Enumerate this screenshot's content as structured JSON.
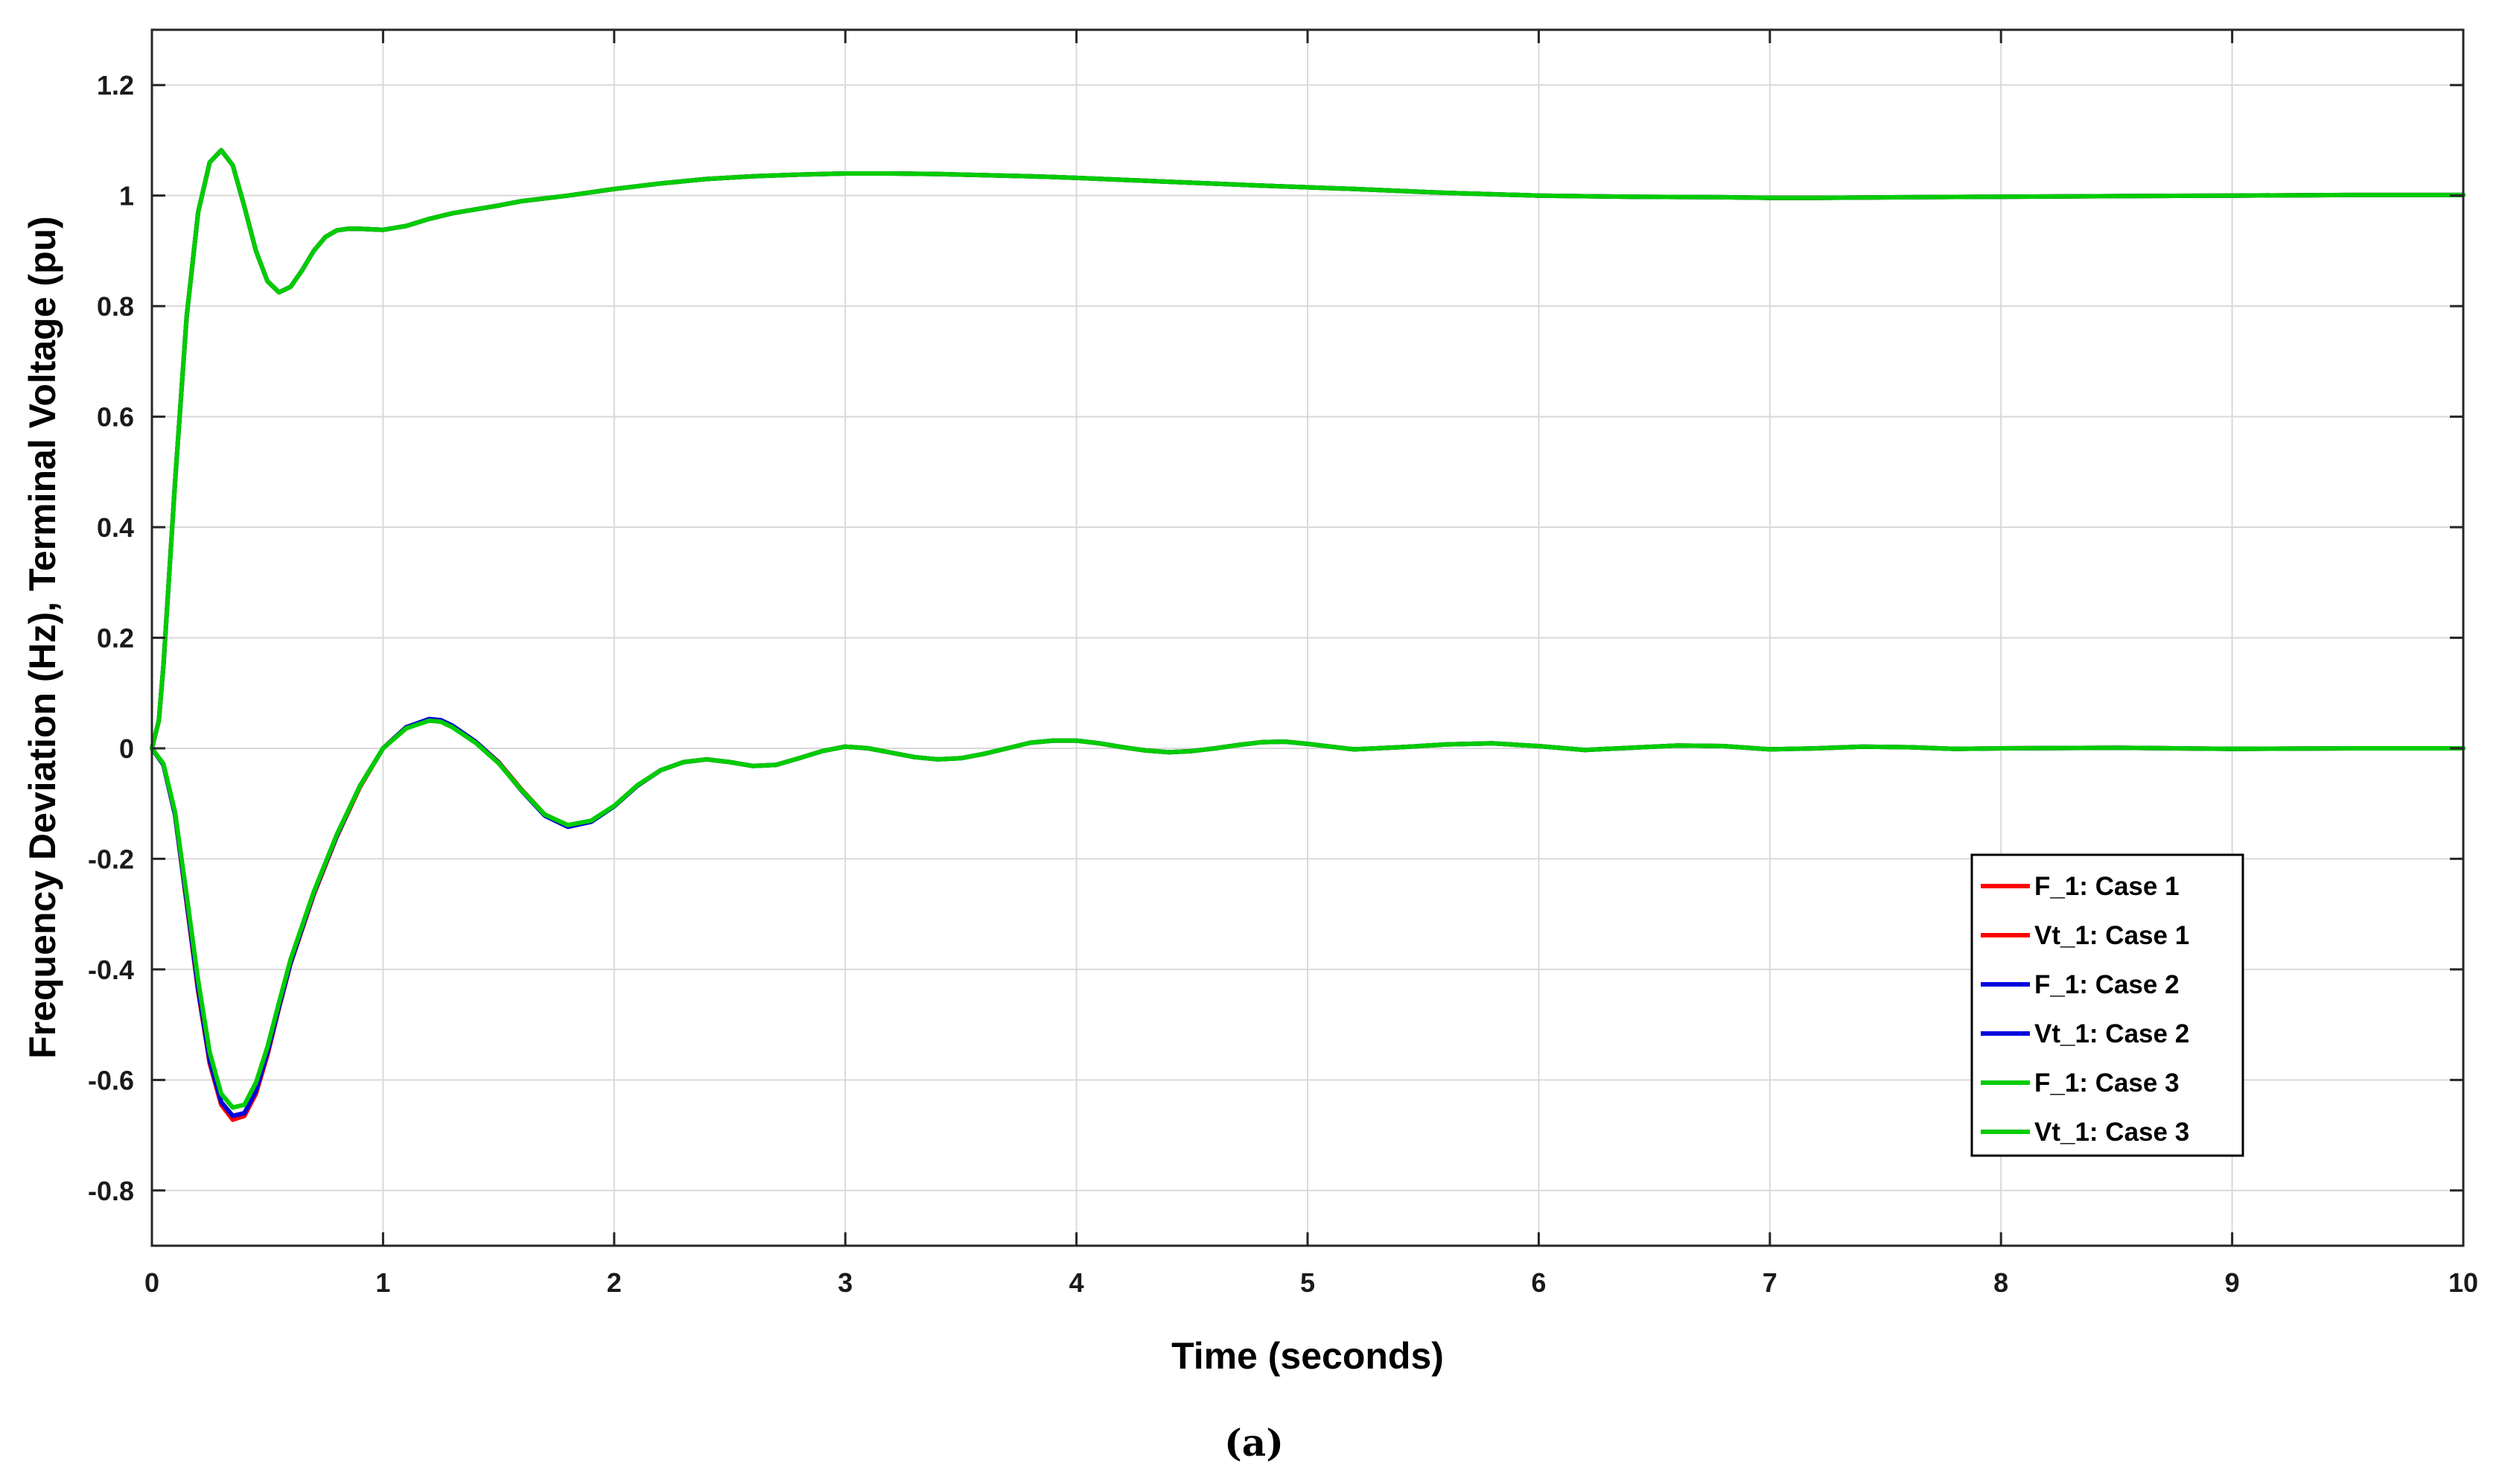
{
  "chart_data": {
    "type": "line",
    "xlabel": "Time (seconds)",
    "ylabel": "Frequency Deviation (Hz), Terminal Voltage (pu)",
    "caption": "(a)",
    "xlim": [
      0,
      10
    ],
    "ylim": [
      -0.9,
      1.3
    ],
    "xticks": [
      0,
      1,
      2,
      3,
      4,
      5,
      6,
      7,
      8,
      9,
      10
    ],
    "xtick_labels": [
      "0",
      "1",
      "2",
      "3",
      "4",
      "5",
      "6",
      "7",
      "8",
      "9",
      "10"
    ],
    "yticks": [
      -0.8,
      -0.6,
      -0.4,
      -0.2,
      0,
      0.2,
      0.4,
      0.6,
      0.8,
      1,
      1.2
    ],
    "ytick_labels": [
      "-0.8",
      "-0.6",
      "-0.4",
      "-0.2",
      "0",
      "0.2",
      "0.4",
      "0.6",
      "0.8",
      "1",
      "1.2"
    ],
    "grid": true,
    "legend_position": "bottom-right",
    "series": [
      {
        "name": "F_1: Case 1",
        "color": "#ff0000",
        "x": [
          0,
          0.05,
          0.1,
          0.15,
          0.2,
          0.25,
          0.3,
          0.35,
          0.4,
          0.45,
          0.5,
          0.55,
          0.6,
          0.7,
          0.8,
          0.9,
          1.0,
          1.1,
          1.2,
          1.25,
          1.3,
          1.4,
          1.5,
          1.6,
          1.7,
          1.8,
          1.9,
          2.0,
          2.1,
          2.2,
          2.3,
          2.4,
          2.5,
          2.6,
          2.7,
          2.8,
          2.9,
          3.0,
          3.1,
          3.2,
          3.3,
          3.4,
          3.5,
          3.6,
          3.7,
          3.8,
          3.9,
          4.0,
          4.1,
          4.2,
          4.3,
          4.4,
          4.5,
          4.6,
          4.7,
          4.8,
          4.9,
          5.0,
          5.2,
          5.4,
          5.6,
          5.8,
          6.0,
          6.2,
          6.4,
          6.6,
          6.8,
          7.0,
          7.2,
          7.4,
          7.6,
          7.8,
          8.0,
          8.5,
          9.0,
          9.5,
          10.0
        ],
        "y": [
          0,
          -0.03,
          -0.12,
          -0.28,
          -0.44,
          -0.57,
          -0.645,
          -0.672,
          -0.665,
          -0.625,
          -0.555,
          -0.47,
          -0.39,
          -0.265,
          -0.16,
          -0.07,
          0.0,
          0.038,
          0.052,
          0.05,
          0.04,
          0.012,
          -0.025,
          -0.075,
          -0.12,
          -0.14,
          -0.132,
          -0.105,
          -0.068,
          -0.04,
          -0.025,
          -0.02,
          -0.025,
          -0.032,
          -0.03,
          -0.018,
          -0.005,
          0.003,
          0.0,
          -0.008,
          -0.016,
          -0.02,
          -0.018,
          -0.01,
          0.0,
          0.01,
          0.014,
          0.014,
          0.009,
          0.002,
          -0.004,
          -0.007,
          -0.005,
          0.0,
          0.006,
          0.011,
          0.012,
          0.008,
          -0.002,
          0.002,
          0.007,
          0.009,
          0.004,
          -0.003,
          0.001,
          0.005,
          0.004,
          -0.002,
          0.0,
          0.003,
          0.002,
          -0.001,
          0.0,
          0.001,
          -0.001,
          0.0,
          0.0
        ]
      },
      {
        "name": "Vt_1: Case 1",
        "color": "#ff0000",
        "x": [
          0,
          0.03,
          0.05,
          0.1,
          0.15,
          0.2,
          0.25,
          0.3,
          0.35,
          0.4,
          0.45,
          0.5,
          0.55,
          0.6,
          0.65,
          0.7,
          0.75,
          0.8,
          0.85,
          0.9,
          1.0,
          1.1,
          1.2,
          1.3,
          1.4,
          1.5,
          1.6,
          1.8,
          2.0,
          2.2,
          2.4,
          2.6,
          2.8,
          3.0,
          3.2,
          3.4,
          3.6,
          3.8,
          4.0,
          4.4,
          4.8,
          5.2,
          5.6,
          6.0,
          6.4,
          6.8,
          7.0,
          7.2,
          7.6,
          8.0,
          8.5,
          9.0,
          9.5,
          10.0
        ],
        "y": [
          0,
          0.05,
          0.15,
          0.48,
          0.78,
          0.97,
          1.06,
          1.082,
          1.055,
          0.98,
          0.9,
          0.845,
          0.825,
          0.835,
          0.865,
          0.9,
          0.925,
          0.937,
          0.94,
          0.94,
          0.938,
          0.945,
          0.958,
          0.968,
          0.975,
          0.982,
          0.99,
          1.0,
          1.012,
          1.022,
          1.03,
          1.035,
          1.038,
          1.04,
          1.04,
          1.039,
          1.037,
          1.035,
          1.032,
          1.025,
          1.018,
          1.012,
          1.005,
          1.0,
          0.998,
          0.997,
          0.996,
          0.996,
          0.997,
          0.998,
          0.999,
          1.0,
          1.001,
          1.001
        ]
      },
      {
        "name": "F_1: Case 2",
        "color": "#0000dd",
        "x": [
          0,
          0.05,
          0.1,
          0.15,
          0.2,
          0.25,
          0.3,
          0.35,
          0.4,
          0.45,
          0.5,
          0.55,
          0.6,
          0.7,
          0.8,
          0.9,
          1.0,
          1.1,
          1.2,
          1.25,
          1.3,
          1.4,
          1.5,
          1.6,
          1.7,
          1.8,
          1.9,
          2.0,
          2.1,
          2.2,
          2.3,
          2.4,
          2.5,
          2.6,
          2.7,
          2.8,
          2.9,
          3.0,
          3.1,
          3.2,
          3.3,
          3.4,
          3.5,
          3.6,
          3.7,
          3.8,
          3.9,
          4.0,
          4.1,
          4.2,
          4.3,
          4.4,
          4.5,
          4.6,
          4.7,
          4.8,
          4.9,
          5.0,
          5.2,
          5.4,
          5.6,
          5.8,
          6.0,
          6.2,
          6.4,
          6.6,
          6.8,
          7.0,
          7.2,
          7.4,
          7.6,
          7.8,
          8.0,
          8.5,
          9.0,
          9.5,
          10.0
        ],
        "y": [
          0,
          -0.03,
          -0.12,
          -0.275,
          -0.435,
          -0.565,
          -0.64,
          -0.665,
          -0.66,
          -0.62,
          -0.55,
          -0.468,
          -0.388,
          -0.262,
          -0.158,
          -0.068,
          0.0,
          0.038,
          0.053,
          0.051,
          0.041,
          0.012,
          -0.026,
          -0.077,
          -0.122,
          -0.142,
          -0.133,
          -0.105,
          -0.068,
          -0.04,
          -0.025,
          -0.02,
          -0.025,
          -0.032,
          -0.03,
          -0.018,
          -0.005,
          0.003,
          0.0,
          -0.008,
          -0.016,
          -0.02,
          -0.018,
          -0.01,
          0.0,
          0.01,
          0.014,
          0.014,
          0.009,
          0.002,
          -0.004,
          -0.007,
          -0.005,
          0.0,
          0.006,
          0.011,
          0.012,
          0.008,
          -0.002,
          0.002,
          0.007,
          0.009,
          0.004,
          -0.003,
          0.001,
          0.005,
          0.004,
          -0.002,
          0.0,
          0.003,
          0.002,
          -0.001,
          0.0,
          0.001,
          -0.001,
          0.0,
          0.0
        ]
      },
      {
        "name": "Vt_1: Case 2",
        "color": "#0000dd",
        "x": [
          0,
          0.03,
          0.05,
          0.1,
          0.15,
          0.2,
          0.25,
          0.3,
          0.35,
          0.4,
          0.45,
          0.5,
          0.55,
          0.6,
          0.65,
          0.7,
          0.75,
          0.8,
          0.85,
          0.9,
          1.0,
          1.1,
          1.2,
          1.3,
          1.4,
          1.5,
          1.6,
          1.8,
          2.0,
          2.2,
          2.4,
          2.6,
          2.8,
          3.0,
          3.2,
          3.4,
          3.6,
          3.8,
          4.0,
          4.4,
          4.8,
          5.2,
          5.6,
          6.0,
          6.4,
          6.8,
          7.0,
          7.2,
          7.6,
          8.0,
          8.5,
          9.0,
          9.5,
          10.0
        ],
        "y": [
          0,
          0.05,
          0.15,
          0.48,
          0.78,
          0.97,
          1.06,
          1.082,
          1.055,
          0.98,
          0.9,
          0.845,
          0.825,
          0.835,
          0.865,
          0.9,
          0.925,
          0.937,
          0.94,
          0.94,
          0.938,
          0.945,
          0.958,
          0.968,
          0.975,
          0.982,
          0.99,
          1.0,
          1.012,
          1.022,
          1.03,
          1.035,
          1.038,
          1.04,
          1.04,
          1.039,
          1.037,
          1.035,
          1.032,
          1.025,
          1.018,
          1.012,
          1.005,
          1.0,
          0.998,
          0.997,
          0.996,
          0.996,
          0.997,
          0.998,
          0.999,
          1.0,
          1.001,
          1.001
        ]
      },
      {
        "name": "F_1: Case 3",
        "color": "#00cc00",
        "x": [
          0,
          0.05,
          0.1,
          0.15,
          0.2,
          0.25,
          0.3,
          0.35,
          0.4,
          0.45,
          0.5,
          0.55,
          0.6,
          0.7,
          0.8,
          0.9,
          1.0,
          1.1,
          1.2,
          1.25,
          1.3,
          1.4,
          1.5,
          1.6,
          1.7,
          1.8,
          1.9,
          2.0,
          2.1,
          2.2,
          2.3,
          2.4,
          2.5,
          2.6,
          2.7,
          2.8,
          2.9,
          3.0,
          3.1,
          3.2,
          3.3,
          3.4,
          3.5,
          3.6,
          3.7,
          3.8,
          3.9,
          4.0,
          4.1,
          4.2,
          4.3,
          4.4,
          4.5,
          4.6,
          4.7,
          4.8,
          4.9,
          5.0,
          5.2,
          5.4,
          5.6,
          5.8,
          6.0,
          6.2,
          6.4,
          6.6,
          6.8,
          7.0,
          7.2,
          7.4,
          7.6,
          7.8,
          8.0,
          8.5,
          9.0,
          9.5,
          10.0
        ],
        "y": [
          0,
          -0.028,
          -0.115,
          -0.265,
          -0.42,
          -0.55,
          -0.625,
          -0.65,
          -0.645,
          -0.605,
          -0.54,
          -0.46,
          -0.382,
          -0.26,
          -0.156,
          -0.068,
          0.0,
          0.036,
          0.05,
          0.048,
          0.038,
          0.01,
          -0.027,
          -0.076,
          -0.12,
          -0.139,
          -0.131,
          -0.104,
          -0.067,
          -0.04,
          -0.025,
          -0.02,
          -0.025,
          -0.032,
          -0.03,
          -0.018,
          -0.005,
          0.003,
          0.0,
          -0.008,
          -0.016,
          -0.02,
          -0.018,
          -0.01,
          0.0,
          0.01,
          0.014,
          0.014,
          0.009,
          0.002,
          -0.004,
          -0.007,
          -0.005,
          0.0,
          0.006,
          0.011,
          0.012,
          0.008,
          -0.002,
          0.002,
          0.007,
          0.009,
          0.004,
          -0.003,
          0.001,
          0.005,
          0.004,
          -0.002,
          0.0,
          0.003,
          0.002,
          -0.001,
          0.0,
          0.001,
          -0.001,
          0.0,
          0.0
        ]
      },
      {
        "name": "Vt_1: Case 3",
        "color": "#00cc00",
        "x": [
          0,
          0.03,
          0.05,
          0.1,
          0.15,
          0.2,
          0.25,
          0.3,
          0.35,
          0.4,
          0.45,
          0.5,
          0.55,
          0.6,
          0.65,
          0.7,
          0.75,
          0.8,
          0.85,
          0.9,
          1.0,
          1.1,
          1.2,
          1.3,
          1.4,
          1.5,
          1.6,
          1.8,
          2.0,
          2.2,
          2.4,
          2.6,
          2.8,
          3.0,
          3.2,
          3.4,
          3.6,
          3.8,
          4.0,
          4.4,
          4.8,
          5.2,
          5.6,
          6.0,
          6.4,
          6.8,
          7.0,
          7.2,
          7.6,
          8.0,
          8.5,
          9.0,
          9.5,
          10.0
        ],
        "y": [
          0,
          0.05,
          0.15,
          0.48,
          0.78,
          0.97,
          1.06,
          1.082,
          1.055,
          0.98,
          0.9,
          0.845,
          0.825,
          0.835,
          0.865,
          0.9,
          0.925,
          0.937,
          0.94,
          0.94,
          0.938,
          0.945,
          0.958,
          0.968,
          0.975,
          0.982,
          0.99,
          1.0,
          1.012,
          1.022,
          1.03,
          1.035,
          1.038,
          1.04,
          1.04,
          1.039,
          1.037,
          1.035,
          1.032,
          1.025,
          1.018,
          1.012,
          1.005,
          1.0,
          0.998,
          0.997,
          0.996,
          0.996,
          0.997,
          0.998,
          0.999,
          1.0,
          1.001,
          1.001
        ]
      }
    ]
  }
}
